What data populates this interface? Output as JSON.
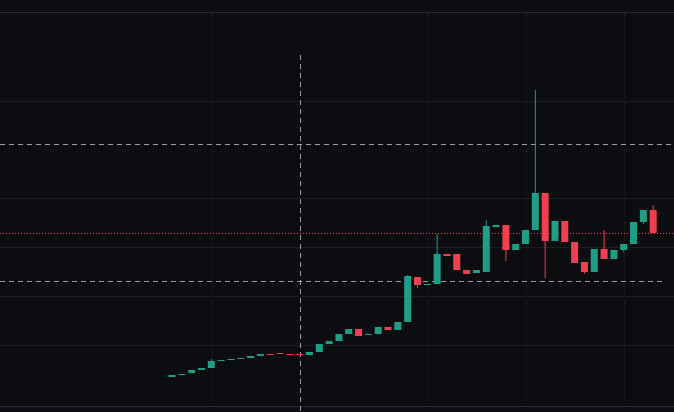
{
  "chart_data": {
    "type": "candlestick",
    "up_color": "#1f9e87",
    "down_color": "#f0404f",
    "ylim": [
      0,
      400
    ],
    "open": [
      35,
      37,
      39,
      42,
      44,
      51,
      52,
      53,
      54,
      56,
      58,
      59,
      58,
      58,
      57,
      60,
      68,
      71,
      78,
      83,
      77,
      78,
      85,
      82,
      90,
      135,
      127,
      128,
      158,
      158,
      142,
      139,
      140,
      185,
      187,
      162,
      168,
      182,
      219,
      171,
      191,
      170,
      150,
      140,
      163,
      153,
      162,
      168,
      190,
      202
    ],
    "high": [
      37,
      38,
      42,
      44,
      53,
      52,
      53,
      54,
      56,
      58,
      58,
      59,
      58,
      58,
      60,
      68,
      71,
      78,
      83,
      83,
      78,
      85,
      85,
      90,
      137,
      135,
      128,
      178,
      158,
      158,
      142,
      142,
      192,
      187,
      187,
      168,
      182,
      322,
      219,
      191,
      191,
      170,
      150,
      163,
      182,
      162,
      168,
      190,
      202,
      207
    ],
    "low": [
      35,
      37,
      39,
      42,
      44,
      51,
      52,
      53,
      54,
      56,
      57,
      58,
      57,
      57,
      57,
      60,
      68,
      71,
      78,
      76,
      77,
      78,
      82,
      82,
      90,
      124,
      127,
      128,
      156,
      142,
      138,
      139,
      140,
      185,
      151,
      162,
      168,
      182,
      134,
      171,
      170,
      149,
      138,
      140,
      153,
      153,
      160,
      168,
      188,
      179
    ],
    "close": [
      37,
      38,
      42,
      44,
      51,
      52,
      53,
      54,
      56,
      58,
      57,
      58,
      57,
      57,
      60,
      68,
      71,
      78,
      83,
      76,
      78,
      85,
      82,
      90,
      136,
      127,
      128,
      158,
      156,
      142,
      138,
      142,
      186,
      187,
      162,
      168,
      182,
      219,
      171,
      191,
      170,
      149,
      140,
      163,
      153,
      162,
      168,
      190,
      202,
      179
    ]
  }
}
